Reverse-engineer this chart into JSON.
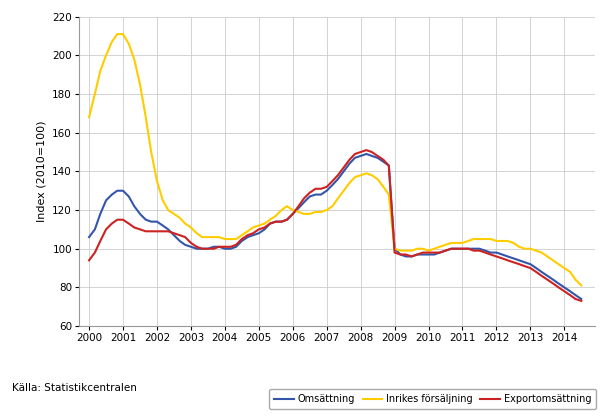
{
  "title": "",
  "ylabel": "Index (2010=100)",
  "xlabel": "",
  "source": "Källa: Statistikcentralen",
  "legend_labels": [
    "Omsättning",
    "Inrikes försäljning",
    "Exportomsättning"
  ],
  "legend_colors": [
    "#3355aa",
    "#ffcc00",
    "#cc2222"
  ],
  "ylim": [
    60,
    220
  ],
  "yticks": [
    60,
    80,
    100,
    120,
    140,
    160,
    180,
    200,
    220
  ],
  "background_color": "#ffffff",
  "grid_color": "#cccccc",
  "omsattning_x": [
    2000.0,
    2000.17,
    2000.33,
    2000.5,
    2000.67,
    2000.83,
    2001.0,
    2001.17,
    2001.33,
    2001.5,
    2001.67,
    2001.83,
    2002.0,
    2002.17,
    2002.33,
    2002.5,
    2002.67,
    2002.83,
    2003.0,
    2003.17,
    2003.33,
    2003.5,
    2003.67,
    2003.83,
    2004.0,
    2004.17,
    2004.33,
    2004.5,
    2004.67,
    2004.83,
    2005.0,
    2005.17,
    2005.33,
    2005.5,
    2005.67,
    2005.83,
    2006.0,
    2006.17,
    2006.33,
    2006.5,
    2006.67,
    2006.83,
    2007.0,
    2007.17,
    2007.33,
    2007.5,
    2007.67,
    2007.83,
    2008.0,
    2008.17,
    2008.33,
    2008.5,
    2008.67,
    2008.83,
    2009.0,
    2009.17,
    2009.33,
    2009.5,
    2009.67,
    2009.83,
    2010.0,
    2010.17,
    2010.33,
    2010.5,
    2010.67,
    2010.83,
    2011.0,
    2011.17,
    2011.33,
    2011.5,
    2011.67,
    2011.83,
    2012.0,
    2012.17,
    2012.33,
    2012.5,
    2012.67,
    2012.83,
    2013.0,
    2013.17,
    2013.33,
    2013.5,
    2013.67,
    2013.83,
    2014.0,
    2014.17,
    2014.33,
    2014.5
  ],
  "omsattning_y": [
    106,
    110,
    118,
    125,
    128,
    130,
    130,
    127,
    122,
    118,
    115,
    114,
    114,
    112,
    110,
    107,
    104,
    102,
    101,
    100,
    100,
    100,
    101,
    101,
    100,
    100,
    101,
    104,
    106,
    107,
    108,
    110,
    113,
    114,
    114,
    115,
    118,
    121,
    124,
    127,
    128,
    128,
    130,
    133,
    136,
    140,
    144,
    147,
    148,
    149,
    148,
    147,
    145,
    143,
    100,
    97,
    96,
    96,
    97,
    97,
    97,
    97,
    98,
    99,
    100,
    100,
    100,
    100,
    100,
    100,
    99,
    98,
    98,
    97,
    96,
    95,
    94,
    93,
    92,
    90,
    88,
    86,
    84,
    82,
    80,
    78,
    76,
    74
  ],
  "inrikes_x": [
    2000.0,
    2000.17,
    2000.33,
    2000.5,
    2000.67,
    2000.83,
    2001.0,
    2001.17,
    2001.33,
    2001.5,
    2001.67,
    2001.83,
    2002.0,
    2002.17,
    2002.33,
    2002.5,
    2002.67,
    2002.83,
    2003.0,
    2003.17,
    2003.33,
    2003.5,
    2003.67,
    2003.83,
    2004.0,
    2004.17,
    2004.33,
    2004.5,
    2004.67,
    2004.83,
    2005.0,
    2005.17,
    2005.33,
    2005.5,
    2005.67,
    2005.83,
    2006.0,
    2006.17,
    2006.33,
    2006.5,
    2006.67,
    2006.83,
    2007.0,
    2007.17,
    2007.33,
    2007.5,
    2007.67,
    2007.83,
    2008.0,
    2008.17,
    2008.33,
    2008.5,
    2008.67,
    2008.83,
    2009.0,
    2009.17,
    2009.33,
    2009.5,
    2009.67,
    2009.83,
    2010.0,
    2010.17,
    2010.33,
    2010.5,
    2010.67,
    2010.83,
    2011.0,
    2011.17,
    2011.33,
    2011.5,
    2011.67,
    2011.83,
    2012.0,
    2012.17,
    2012.33,
    2012.5,
    2012.67,
    2012.83,
    2013.0,
    2013.17,
    2013.33,
    2013.5,
    2013.67,
    2013.83,
    2014.0,
    2014.17,
    2014.33,
    2014.5
  ],
  "inrikes_y": [
    168,
    180,
    192,
    200,
    207,
    211,
    211,
    206,
    198,
    185,
    168,
    150,
    135,
    125,
    120,
    118,
    116,
    113,
    111,
    108,
    106,
    106,
    106,
    106,
    105,
    105,
    105,
    107,
    109,
    111,
    112,
    113,
    115,
    117,
    120,
    122,
    120,
    119,
    118,
    118,
    119,
    119,
    120,
    122,
    126,
    130,
    134,
    137,
    138,
    139,
    138,
    136,
    132,
    128,
    100,
    99,
    99,
    99,
    100,
    100,
    99,
    100,
    101,
    102,
    103,
    103,
    103,
    104,
    105,
    105,
    105,
    105,
    104,
    104,
    104,
    103,
    101,
    100,
    100,
    99,
    98,
    96,
    94,
    92,
    90,
    88,
    84,
    81
  ],
  "export_x": [
    2000.0,
    2000.17,
    2000.33,
    2000.5,
    2000.67,
    2000.83,
    2001.0,
    2001.17,
    2001.33,
    2001.5,
    2001.67,
    2001.83,
    2002.0,
    2002.17,
    2002.33,
    2002.5,
    2002.67,
    2002.83,
    2003.0,
    2003.17,
    2003.33,
    2003.5,
    2003.67,
    2003.83,
    2004.0,
    2004.17,
    2004.33,
    2004.5,
    2004.67,
    2004.83,
    2005.0,
    2005.17,
    2005.33,
    2005.5,
    2005.67,
    2005.83,
    2006.0,
    2006.17,
    2006.33,
    2006.5,
    2006.67,
    2006.83,
    2007.0,
    2007.17,
    2007.33,
    2007.5,
    2007.67,
    2007.83,
    2008.0,
    2008.17,
    2008.33,
    2008.5,
    2008.67,
    2008.83,
    2009.0,
    2009.17,
    2009.33,
    2009.5,
    2009.67,
    2009.83,
    2010.0,
    2010.17,
    2010.33,
    2010.5,
    2010.67,
    2010.83,
    2011.0,
    2011.17,
    2011.33,
    2011.5,
    2011.67,
    2011.83,
    2012.0,
    2012.17,
    2012.33,
    2012.5,
    2012.67,
    2012.83,
    2013.0,
    2013.17,
    2013.33,
    2013.5,
    2013.67,
    2013.83,
    2014.0,
    2014.17,
    2014.33,
    2014.5
  ],
  "export_y": [
    94,
    98,
    104,
    110,
    113,
    115,
    115,
    113,
    111,
    110,
    109,
    109,
    109,
    109,
    109,
    108,
    107,
    106,
    103,
    101,
    100,
    100,
    100,
    101,
    101,
    101,
    102,
    105,
    107,
    108,
    110,
    111,
    113,
    114,
    114,
    115,
    118,
    122,
    126,
    129,
    131,
    131,
    132,
    135,
    138,
    142,
    146,
    149,
    150,
    151,
    150,
    148,
    146,
    143,
    98,
    97,
    97,
    96,
    97,
    98,
    98,
    98,
    98,
    99,
    100,
    100,
    100,
    100,
    99,
    99,
    98,
    97,
    96,
    95,
    94,
    93,
    92,
    91,
    90,
    88,
    86,
    84,
    82,
    80,
    78,
    76,
    74,
    73
  ]
}
